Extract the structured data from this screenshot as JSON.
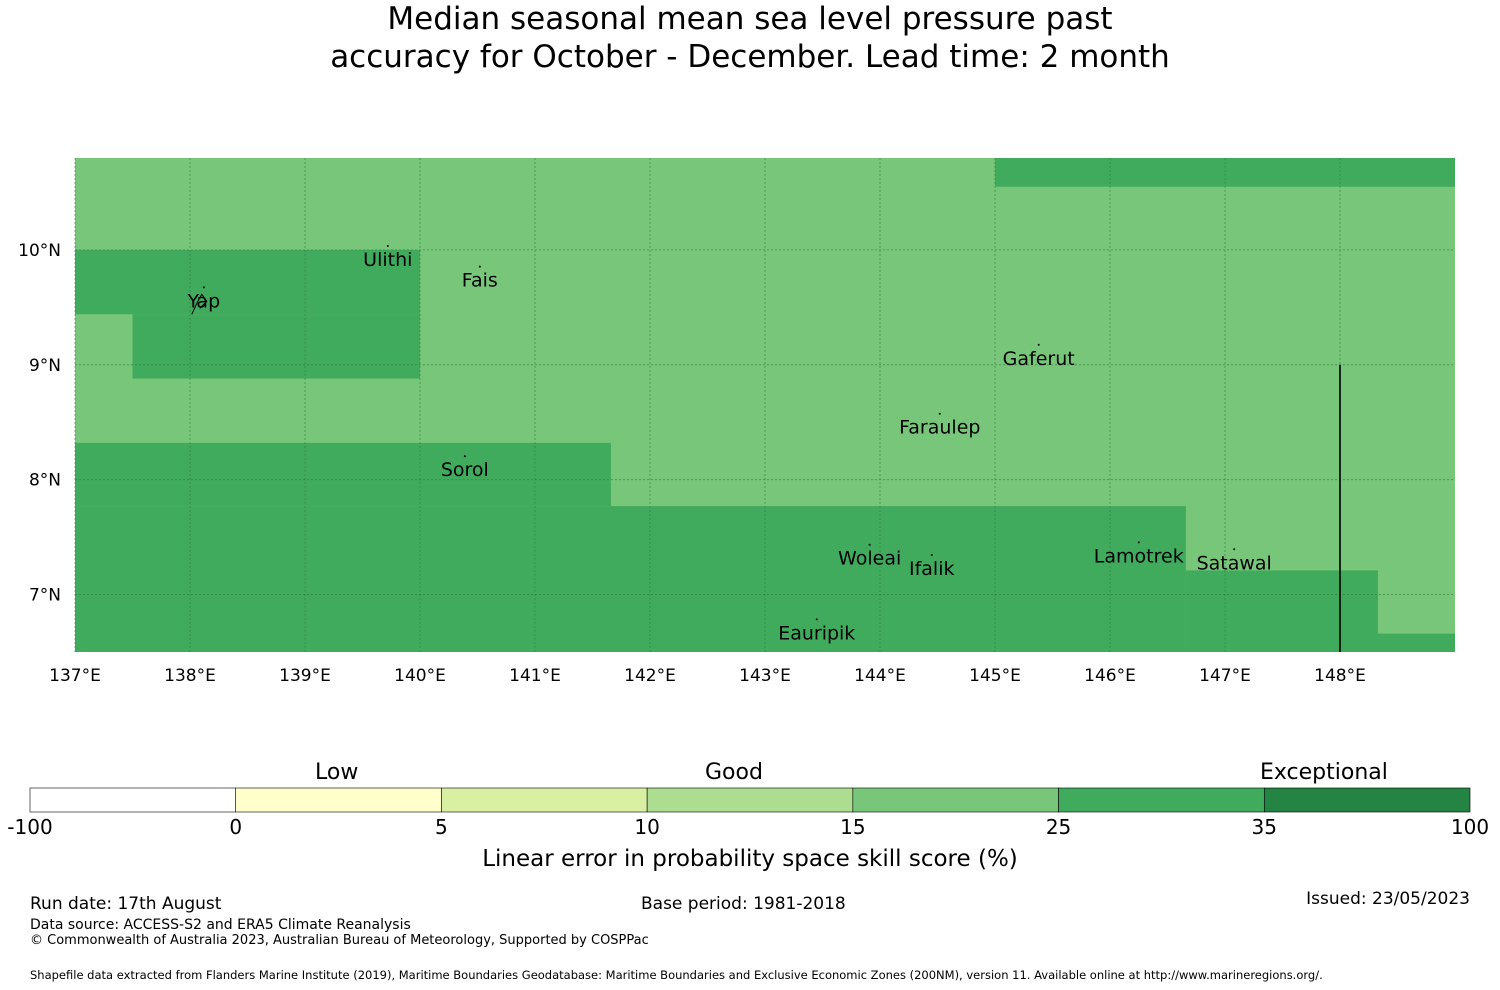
{
  "title": {
    "line1": "Median seasonal mean sea level pressure past",
    "line2": "accuracy for October - December. Lead time: 2 month"
  },
  "map": {
    "lon_range": [
      137.0,
      149.0
    ],
    "lat_range": [
      6.5,
      10.8
    ],
    "lon_ticks": [
      "137°E",
      "138°E",
      "139°E",
      "140°E",
      "141°E",
      "142°E",
      "143°E",
      "144°E",
      "145°E",
      "146°E",
      "147°E",
      "148°E"
    ],
    "lat_ticks": [
      "7°N",
      "8°N",
      "9°N",
      "10°N"
    ],
    "gridlines": true,
    "background_category": "15-25",
    "regions": [
      {
        "category": "25-35",
        "lon": [
          145.0,
          149.0
        ],
        "lat": [
          10.55,
          10.8
        ]
      },
      {
        "category": "25-35",
        "lon": [
          137.0,
          140.0
        ],
        "lat": [
          9.44,
          10.0
        ]
      },
      {
        "category": "25-35",
        "lon": [
          137.5,
          140.0
        ],
        "lat": [
          8.88,
          9.44
        ]
      },
      {
        "category": "25-35",
        "lon": [
          137.0,
          141.66
        ],
        "lat": [
          7.77,
          8.32
        ]
      },
      {
        "category": "25-35",
        "lon": [
          137.0,
          146.66
        ],
        "lat": [
          6.5,
          7.77
        ]
      },
      {
        "category": "25-35",
        "lon": [
          146.66,
          148.33
        ],
        "lat": [
          6.5,
          7.21
        ]
      },
      {
        "category": "25-35",
        "lon": [
          148.33,
          149.0
        ],
        "lat": [
          6.5,
          6.66
        ]
      }
    ],
    "boundary_line": {
      "lon": 148.0,
      "lat": [
        6.5,
        9.0
      ]
    },
    "places": [
      {
        "name": "Ulithi",
        "lon": 139.72,
        "lat": 9.86
      },
      {
        "name": "Yap",
        "lon": 138.12,
        "lat": 9.5
      },
      {
        "name": "Fais",
        "lon": 140.52,
        "lat": 9.68
      },
      {
        "name": "Gaferut",
        "lon": 145.38,
        "lat": 9.0
      },
      {
        "name": "Faraulep",
        "lon": 144.52,
        "lat": 8.4
      },
      {
        "name": "Sorol",
        "lon": 140.39,
        "lat": 8.03
      },
      {
        "name": "Woleai",
        "lon": 143.91,
        "lat": 7.26
      },
      {
        "name": "Ifalik",
        "lon": 144.45,
        "lat": 7.17
      },
      {
        "name": "Lamotrek",
        "lon": 146.25,
        "lat": 7.28
      },
      {
        "name": "Satawal",
        "lon": 147.08,
        "lat": 7.22
      },
      {
        "name": "Eauripik",
        "lon": 143.45,
        "lat": 6.61
      }
    ]
  },
  "colorbar": {
    "segments": [
      {
        "range": "-100-0",
        "color": "#ffffff"
      },
      {
        "range": "0-5",
        "color": "#ffffcc"
      },
      {
        "range": "5-10",
        "color": "#d9f0a3"
      },
      {
        "range": "10-15",
        "color": "#addd8e"
      },
      {
        "range": "15-25",
        "color": "#78c679"
      },
      {
        "range": "25-35",
        "color": "#41ab5d"
      },
      {
        "range": "35-100",
        "color": "#238443"
      }
    ],
    "ticks": [
      "-100",
      "0",
      "5",
      "10",
      "15",
      "25",
      "35",
      "100"
    ],
    "group_labels": {
      "low": "Low",
      "good": "Good",
      "exceptional": "Exceptional"
    },
    "axis_label": "Linear error in probability space skill score (%)"
  },
  "footer": {
    "run_date": "Run date: 17th August",
    "base_period": "Base period: 1981-2018",
    "issued": "Issued: 23/05/2023",
    "data_source": "Data source: ACCESS-S2 and ERA5 Climate Reanalysis",
    "copyright": "© Commonwealth of Australia 2023, Australian Bureau of Meteorology, Supported by COSPPac",
    "shapefile": "Shapefile data extracted from Flanders Marine Institute (2019), Maritime Boundaries Geodatabase: Maritime Boundaries and Exclusive Economic Zones (200NM), version 11. Available online at http://www.marineregions.org/."
  },
  "colors": {
    "cat_15_25": "#78c679",
    "cat_25_35": "#41ab5d",
    "grid": "#2a7a3a",
    "boundary": "#000000"
  }
}
